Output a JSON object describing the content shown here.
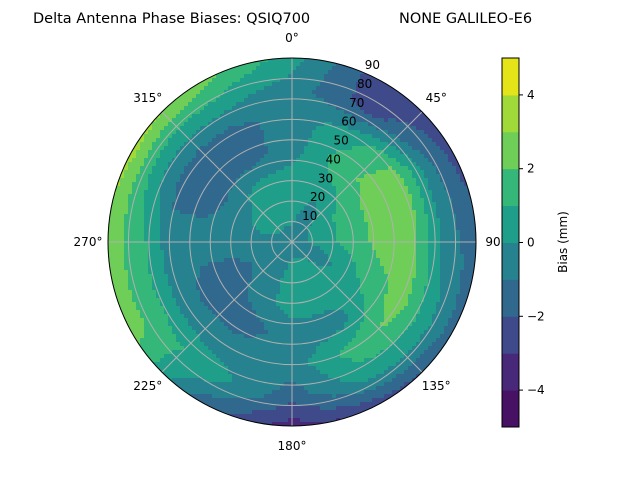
{
  "chart_data": {
    "type": "heatmap",
    "subtype": "polar-filled-contour",
    "title": "Delta Antenna Phase Biases: QSIQ700",
    "subtitle": "NONE GALILEO-E6",
    "angle_direction": "clockwise",
    "zero_location": "top",
    "angle_ticks": [
      {
        "value": 0,
        "label": "0°"
      },
      {
        "value": 45,
        "label": "45°"
      },
      {
        "value": 90,
        "label": "90°"
      },
      {
        "value": 135,
        "label": "135°"
      },
      {
        "value": 180,
        "label": "180°"
      },
      {
        "value": 225,
        "label": "225°"
      },
      {
        "value": 270,
        "label": "270°"
      },
      {
        "value": 315,
        "label": "315°"
      }
    ],
    "radial_ticks": [
      "10",
      "20",
      "30",
      "40",
      "50",
      "60",
      "70",
      "80",
      "90"
    ],
    "rlim": [
      0,
      90
    ],
    "grid": true,
    "azimuth": [
      0,
      30,
      60,
      90,
      120,
      150,
      180,
      210,
      240,
      270,
      300,
      330
    ],
    "radius": [
      0,
      15,
      30,
      45,
      60,
      75,
      90
    ],
    "values": [
      [
        -0.5,
        0.5,
        0.5,
        -0.5,
        -0.5,
        -0.5,
        0.5
      ],
      [
        -0.5,
        -0.5,
        0.5,
        1.5,
        0.5,
        -2.5,
        -2.8
      ],
      [
        -0.5,
        0.5,
        1.5,
        2.5,
        2.5,
        -0.5,
        -2.5
      ],
      [
        -0.5,
        0.5,
        1.5,
        2.5,
        2.2,
        -0.5,
        -1.5
      ],
      [
        -0.5,
        -0.5,
        0.5,
        1.5,
        2.5,
        0.5,
        -1.5
      ],
      [
        -0.5,
        0.5,
        0.5,
        -0.5,
        1.5,
        0.5,
        -2.5
      ],
      [
        -0.5,
        0.5,
        0.5,
        -0.5,
        -0.5,
        -1.5,
        -3.5
      ],
      [
        -0.5,
        -0.5,
        -0.5,
        -1.5,
        -0.5,
        0.5,
        -1.5
      ],
      [
        -0.5,
        -0.5,
        -1.5,
        -1.5,
        -0.5,
        1.5,
        2.5
      ],
      [
        -0.5,
        -0.5,
        -0.5,
        -0.5,
        -0.5,
        1.5,
        2.5
      ],
      [
        -0.5,
        0.5,
        -0.5,
        -1.5,
        -1.5,
        0.5,
        3.5
      ],
      [
        -0.5,
        0.5,
        0.5,
        -1.5,
        -1.5,
        0.5,
        2.5
      ]
    ],
    "levels": [
      -5,
      -4,
      -3,
      -2,
      -1,
      0,
      1,
      2,
      3,
      4,
      5
    ],
    "level_colors": [
      "#471164",
      "#482878",
      "#3e4a89",
      "#31688e",
      "#26828e",
      "#1f9e89",
      "#35b779",
      "#6ece58",
      "#a0da39",
      "#e5e419"
    ],
    "colorbar": {
      "label": "Bias (mm)",
      "range": [
        -5,
        5
      ],
      "ticks": [
        {
          "value": 4,
          "label": "4"
        },
        {
          "value": 2,
          "label": "2"
        },
        {
          "value": 0,
          "label": "0"
        },
        {
          "value": -2,
          "label": "−2"
        },
        {
          "value": -4,
          "label": "−4"
        }
      ]
    },
    "colormap": "viridis"
  }
}
